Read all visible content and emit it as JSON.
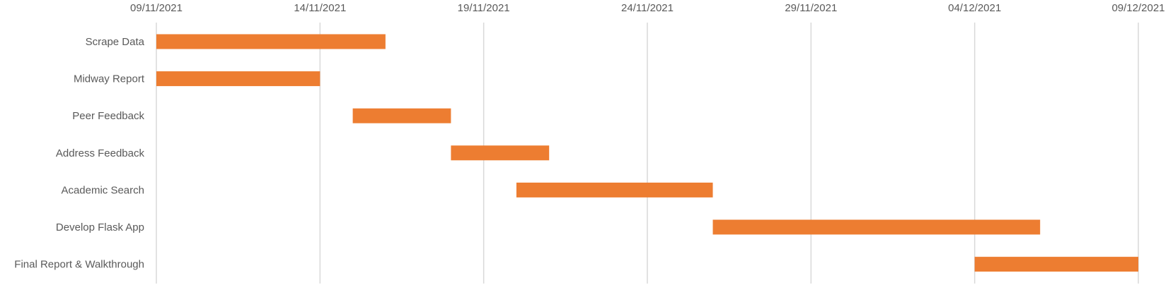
{
  "chart_data": {
    "type": "bar",
    "orientation": "horizontal",
    "title": "",
    "xlabel": "",
    "ylabel": "",
    "x_axis_position": "top",
    "grid": true,
    "legend": "none",
    "bar_color": "#ed7d31",
    "xlim": [
      "2021-11-09",
      "2021-12-09"
    ],
    "x_ticks": [
      "09/11/2021",
      "14/11/2021",
      "19/11/2021",
      "24/11/2021",
      "29/11/2021",
      "04/12/2021",
      "09/12/2021"
    ],
    "tasks": [
      {
        "name": "Scrape Data",
        "start": "2021-11-09",
        "end": "2021-11-16"
      },
      {
        "name": "Midway Report",
        "start": "2021-11-09",
        "end": "2021-11-14"
      },
      {
        "name": "Peer Feedback",
        "start": "2021-11-15",
        "end": "2021-11-18"
      },
      {
        "name": "Address Feedback",
        "start": "2021-11-18",
        "end": "2021-11-21"
      },
      {
        "name": "Academic Search",
        "start": "2021-11-20",
        "end": "2021-11-26"
      },
      {
        "name": "Develop Flask App",
        "start": "2021-11-26",
        "end": "2021-12-06"
      },
      {
        "name": "Final Report & Walkthrough",
        "start": "2021-12-04",
        "end": "2021-12-09"
      }
    ]
  }
}
